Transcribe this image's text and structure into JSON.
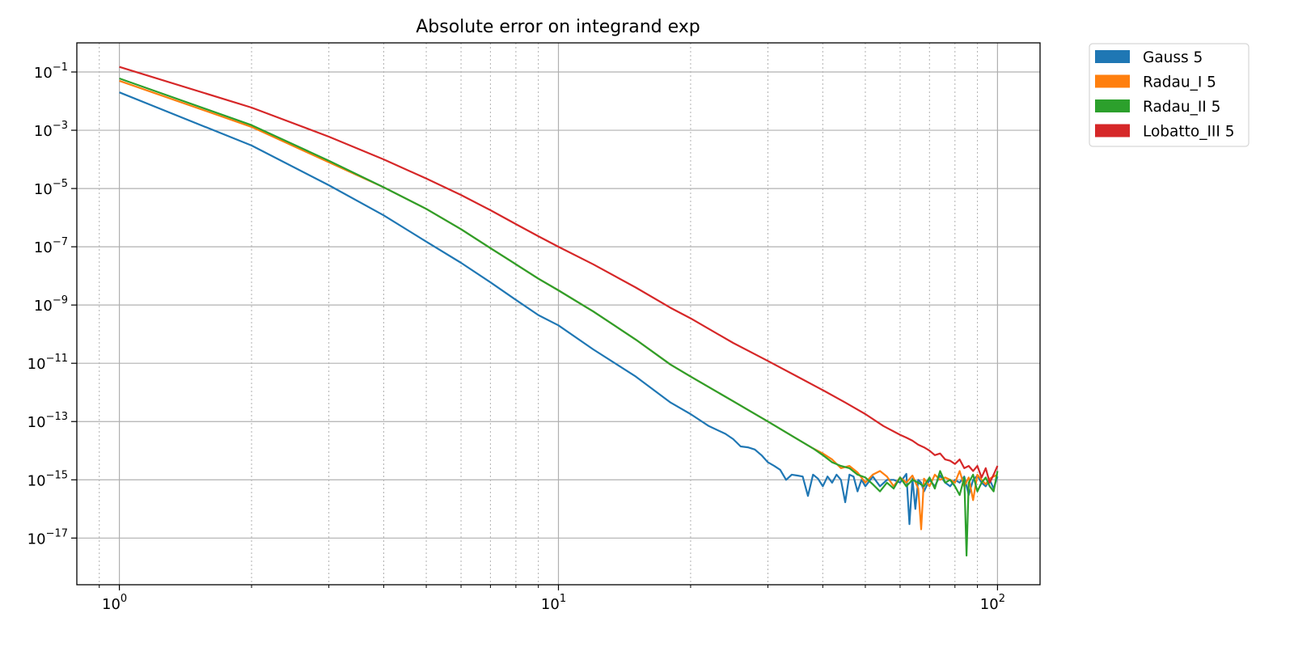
{
  "chart_data": {
    "type": "line",
    "title": "Absolute error on integrand exp",
    "xlabel": "",
    "ylabel": "",
    "xscale": "log",
    "yscale": "log",
    "xlim": [
      0.8,
      125
    ],
    "ylim": [
      2.5e-19,
      1.0
    ],
    "x_ticks": [
      {
        "value": 1,
        "base": "10",
        "exp": "0"
      },
      {
        "value": 10,
        "base": "10",
        "exp": "1"
      },
      {
        "value": 100,
        "base": "10",
        "exp": "2"
      }
    ],
    "y_ticks": [
      {
        "value": 0.1,
        "base": "10",
        "exp": "−1"
      },
      {
        "value": 0.001,
        "base": "10",
        "exp": "−3"
      },
      {
        "value": 1e-05,
        "base": "10",
        "exp": "−5"
      },
      {
        "value": 1e-07,
        "base": "10",
        "exp": "−7"
      },
      {
        "value": 1e-09,
        "base": "10",
        "exp": "−9"
      },
      {
        "value": 1e-11,
        "base": "10",
        "exp": "−11"
      },
      {
        "value": 1e-13,
        "base": "10",
        "exp": "−13"
      },
      {
        "value": 1e-15,
        "base": "10",
        "exp": "−15"
      },
      {
        "value": 1e-17,
        "base": "10",
        "exp": "−17"
      }
    ],
    "grid": {
      "major": true,
      "minor_x": true
    },
    "legend_placement": "outside-top-right",
    "series": [
      {
        "name": "Gauss 5",
        "color": "#1f77b4",
        "x": [
          1,
          2,
          3,
          4,
          5,
          6,
          7,
          8,
          9,
          10,
          12,
          15,
          18,
          20,
          22,
          24,
          25,
          26,
          27,
          28,
          29,
          30,
          31,
          32,
          33,
          34,
          35,
          36,
          37,
          38,
          39,
          40,
          41,
          42,
          43,
          44,
          45,
          46,
          47,
          48,
          49,
          50,
          52,
          54,
          56,
          58,
          60,
          62,
          63,
          64,
          65,
          66,
          67,
          68,
          70,
          72,
          74,
          76,
          78,
          80,
          82,
          84,
          86,
          88,
          90,
          92,
          94,
          96,
          98,
          100
        ],
        "y": [
          0.02,
          0.0003,
          1.3e-05,
          1.2e-06,
          1.5e-07,
          2.8e-08,
          6e-09,
          1.5e-09,
          4.5e-10,
          2e-10,
          3e-11,
          3.5e-12,
          4.5e-13,
          1.8e-13,
          7e-14,
          3.8e-14,
          2.5e-14,
          1.4e-14,
          1.3e-14,
          1.1e-14,
          7e-15,
          4e-15,
          3e-15,
          2.2e-15,
          1e-15,
          1.5e-15,
          1.4e-15,
          1.3e-15,
          2.8e-16,
          1.5e-15,
          1.1e-15,
          6e-16,
          1.3e-15,
          8e-16,
          1.5e-15,
          1e-15,
          1.7e-16,
          1.5e-15,
          1.3e-15,
          4e-16,
          1e-15,
          6e-16,
          1.3e-15,
          6e-16,
          1e-15,
          1e-15,
          8e-16,
          1.6e-15,
          3e-17,
          1.1e-15,
          1e-16,
          1e-15,
          8e-16,
          4e-16,
          1e-15,
          6e-16,
          1.4e-15,
          8e-16,
          6e-16,
          1e-15,
          8e-16,
          1.3e-15,
          3e-16,
          1e-15,
          1.4e-15,
          8e-16,
          6e-16,
          1e-15,
          5e-16,
          1.3e-15
        ]
      },
      {
        "name": "Radau_I 5",
        "color": "#ff7f0e",
        "x": [
          1,
          2,
          3,
          4,
          5,
          6,
          7,
          8,
          9,
          10,
          12,
          15,
          18,
          20,
          25,
          30,
          35,
          38,
          40,
          42,
          44,
          46,
          48,
          50,
          52,
          54,
          56,
          58,
          60,
          62,
          64,
          66,
          67,
          68,
          70,
          72,
          74,
          76,
          78,
          80,
          82,
          84,
          86,
          88,
          90,
          92,
          94,
          96,
          98,
          100
        ],
        "y": [
          0.05,
          0.0013,
          8e-05,
          1.1e-05,
          2e-06,
          4e-07,
          9e-08,
          2.5e-08,
          8e-09,
          3.2e-09,
          6e-10,
          6.5e-11,
          9e-12,
          3.5e-12,
          5e-13,
          1e-13,
          2.5e-14,
          1.2e-14,
          8e-15,
          5e-15,
          2.5e-15,
          3e-15,
          1.8e-15,
          8e-16,
          1.5e-15,
          2e-15,
          1.3e-15,
          6e-16,
          1.2e-15,
          8e-16,
          1.4e-15,
          5e-16,
          2e-17,
          1.1e-15,
          6e-16,
          1.5e-15,
          1e-15,
          1.2e-15,
          1e-15,
          8e-16,
          2e-15,
          6e-16,
          1.2e-15,
          2e-16,
          1.5e-15,
          1e-15,
          7e-16,
          1.1e-15,
          1.3e-15,
          1.5e-15
        ]
      },
      {
        "name": "Radau_II 5",
        "color": "#2ca02c",
        "x": [
          1,
          2,
          3,
          4,
          5,
          6,
          7,
          8,
          9,
          10,
          12,
          15,
          18,
          20,
          25,
          30,
          35,
          38,
          40,
          42,
          44,
          46,
          48,
          50,
          52,
          54,
          56,
          58,
          60,
          62,
          64,
          66,
          68,
          70,
          72,
          74,
          76,
          78,
          80,
          82,
          84,
          85,
          86,
          88,
          90,
          92,
          94,
          96,
          98,
          100
        ],
        "y": [
          0.06,
          0.0015,
          9e-05,
          1.1e-05,
          2e-06,
          4e-07,
          9e-08,
          2.5e-08,
          8e-09,
          3.2e-09,
          6e-10,
          6.5e-11,
          9e-12,
          3.5e-12,
          5e-13,
          1e-13,
          2.5e-14,
          1.2e-14,
          7e-15,
          4e-15,
          3e-15,
          2.5e-15,
          1.5e-15,
          1.2e-15,
          7e-16,
          4e-16,
          8e-16,
          5e-16,
          1.2e-15,
          6e-16,
          1e-15,
          8e-16,
          6e-16,
          1.2e-15,
          5e-16,
          2e-15,
          8e-16,
          1e-15,
          6e-16,
          3e-16,
          1.2e-15,
          2.5e-18,
          8e-16,
          1.5e-15,
          4e-16,
          8e-16,
          1.2e-15,
          6e-16,
          4e-16,
          2e-15
        ]
      },
      {
        "name": "Lobatto_III 5",
        "color": "#d62728",
        "x": [
          1,
          2,
          3,
          4,
          5,
          6,
          7,
          8,
          9,
          10,
          12,
          15,
          18,
          20,
          25,
          30,
          35,
          40,
          45,
          50,
          55,
          60,
          62,
          64,
          66,
          68,
          70,
          72,
          74,
          76,
          78,
          80,
          82,
          84,
          86,
          88,
          90,
          92,
          94,
          96,
          98,
          100
        ],
        "y": [
          0.15,
          0.006,
          0.0006,
          0.0001,
          2.2e-05,
          6e-06,
          1.8e-06,
          6e-07,
          2.3e-07,
          1e-07,
          2.5e-08,
          4e-09,
          8e-10,
          3.5e-10,
          5e-11,
          1.2e-11,
          3.5e-12,
          1.2e-12,
          4.5e-13,
          1.8e-13,
          7e-14,
          3.5e-14,
          2.8e-14,
          2.2e-14,
          1.6e-14,
          1.3e-14,
          1e-14,
          7e-15,
          8e-15,
          5e-15,
          4.5e-15,
          3.5e-15,
          5e-15,
          2.5e-15,
          3e-15,
          2e-15,
          3e-15,
          1.2e-15,
          2.5e-15,
          8e-16,
          1.5e-15,
          3e-15
        ]
      }
    ]
  }
}
